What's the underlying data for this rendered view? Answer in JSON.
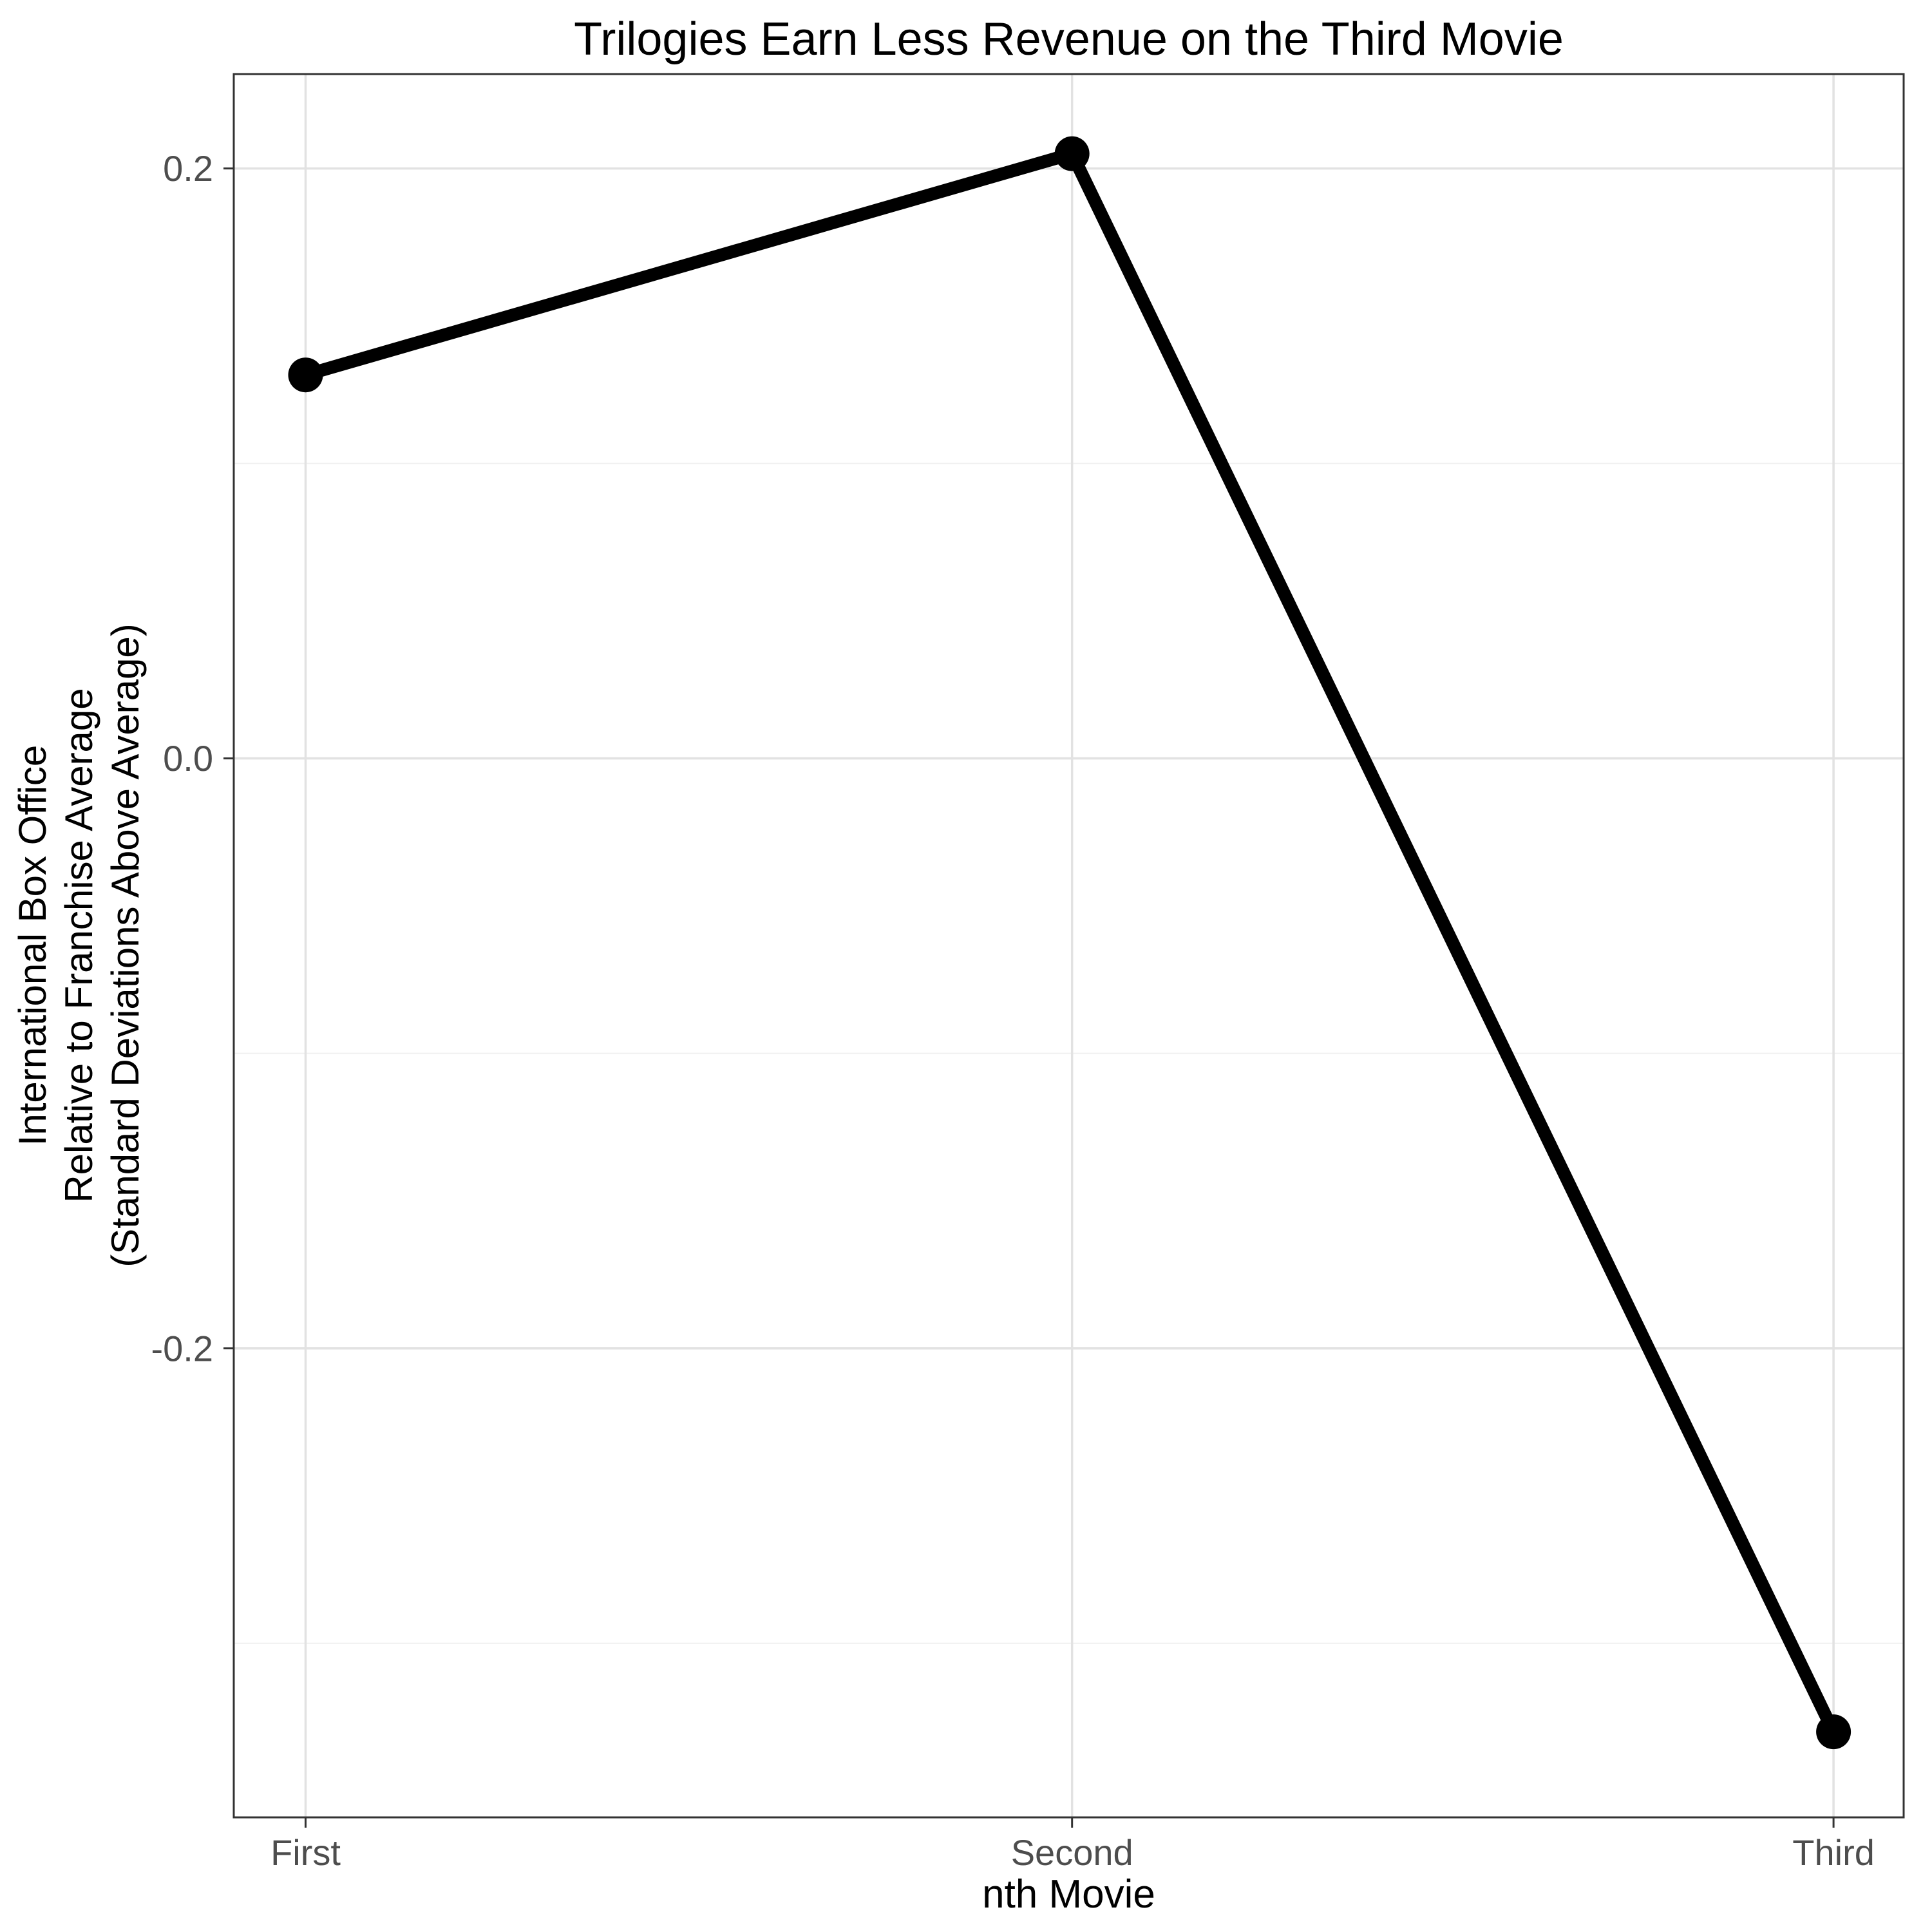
{
  "chart_data": {
    "type": "line",
    "title": "Trilogies Earn Less Revenue on the Third Movie",
    "xlabel": "nth Movie",
    "ylabel": "International Box Office\nRelative to Franchise Average\n(Standard Deviations Above Average)",
    "categories": [
      "First",
      "Second",
      "Third"
    ],
    "values": [
      0.13,
      0.205,
      -0.33
    ],
    "ylim": [
      -0.359,
      0.232
    ],
    "yticks": [
      0.2,
      0.0,
      -0.2
    ],
    "ytick_labels": [
      "0.2",
      "0.0",
      "-0.2"
    ],
    "yticks_minor": [
      0.1,
      -0.1,
      -0.3
    ],
    "grid": true,
    "legend": "none",
    "line_color": "#000000",
    "point_color": "#000000",
    "grid_major_color": "#e2e2e2",
    "grid_minor_color": "#f0f0f0",
    "panel_border_color": "#333333",
    "tick_label_color": "#4d4d4d",
    "background": "#ffffff"
  }
}
